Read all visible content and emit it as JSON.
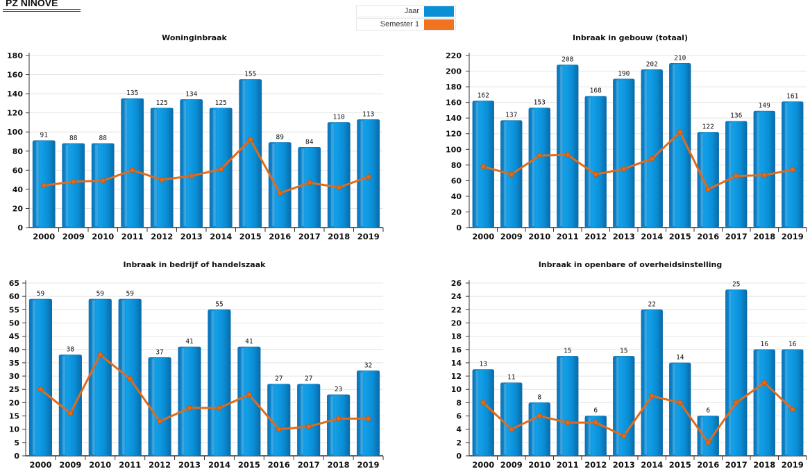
{
  "header": {
    "title": "PZ NINOVE"
  },
  "legend": [
    {
      "label": "Jaar",
      "color": "#0a8ed6"
    },
    {
      "label": "Semester 1",
      "color": "#f07320"
    }
  ],
  "colors": {
    "bar": "#0a8ed6",
    "line": "#e06b1c"
  },
  "chart_data": [
    {
      "type": "bar",
      "title": "Woninginbraak",
      "categories": [
        "2000",
        "2009",
        "2010",
        "2011",
        "2012",
        "2013",
        "2014",
        "2015",
        "2016",
        "2017",
        "2018",
        "2019"
      ],
      "ylim": [
        0,
        180
      ],
      "yticks": [
        0,
        20,
        40,
        60,
        80,
        100,
        120,
        140,
        160,
        180
      ],
      "series": [
        {
          "name": "Jaar",
          "type": "bar",
          "values": [
            91,
            88,
            88,
            135,
            125,
            134,
            125,
            155,
            89,
            84,
            110,
            113
          ]
        },
        {
          "name": "Semester 1",
          "type": "line",
          "values": [
            44,
            48,
            49,
            60,
            50,
            54,
            61,
            92,
            36,
            47,
            42,
            53
          ]
        }
      ]
    },
    {
      "type": "bar",
      "title": "Inbraak in gebouw (totaal)",
      "categories": [
        "2000",
        "2009",
        "2010",
        "2011",
        "2012",
        "2013",
        "2014",
        "2015",
        "2016",
        "2017",
        "2018",
        "2019"
      ],
      "ylim": [
        0,
        220
      ],
      "yticks": [
        0,
        20,
        40,
        60,
        80,
        100,
        120,
        140,
        160,
        180,
        200,
        220
      ],
      "series": [
        {
          "name": "Jaar",
          "type": "bar",
          "values": [
            162,
            137,
            153,
            208,
            168,
            190,
            202,
            210,
            122,
            136,
            149,
            161
          ]
        },
        {
          "name": "Semester 1",
          "type": "line",
          "values": [
            78,
            68,
            92,
            93,
            68,
            75,
            88,
            122,
            49,
            66,
            67,
            74
          ]
        }
      ]
    },
    {
      "type": "bar",
      "title": "Inbraak in bedrijf of handelszaak",
      "categories": [
        "2000",
        "2009",
        "2010",
        "2011",
        "2012",
        "2013",
        "2014",
        "2015",
        "2016",
        "2017",
        "2018",
        "2019"
      ],
      "ylim": [
        0,
        65
      ],
      "yticks": [
        0,
        5,
        10,
        15,
        20,
        25,
        30,
        35,
        40,
        45,
        50,
        55,
        60,
        65
      ],
      "series": [
        {
          "name": "Jaar",
          "type": "bar",
          "values": [
            59,
            38,
            59,
            59,
            37,
            41,
            55,
            41,
            27,
            27,
            23,
            32
          ]
        },
        {
          "name": "Semester 1",
          "type": "line",
          "values": [
            25,
            16,
            38,
            29,
            13,
            18,
            18,
            23,
            10,
            11,
            14,
            14
          ]
        }
      ]
    },
    {
      "type": "bar",
      "title": "Inbraak in openbare of overheidsinstelling",
      "categories": [
        "2000",
        "2009",
        "2010",
        "2011",
        "2012",
        "2013",
        "2014",
        "2015",
        "2016",
        "2017",
        "2018",
        "2019"
      ],
      "ylim": [
        0,
        26
      ],
      "yticks": [
        0,
        2,
        4,
        6,
        8,
        10,
        12,
        14,
        16,
        18,
        20,
        22,
        24,
        26
      ],
      "series": [
        {
          "name": "Jaar",
          "type": "bar",
          "values": [
            13,
            11,
            8,
            15,
            6,
            15,
            22,
            14,
            6,
            25,
            16,
            16
          ]
        },
        {
          "name": "Semester 1",
          "type": "line",
          "values": [
            8,
            4,
            6,
            5,
            5,
            3,
            9,
            8,
            2,
            8,
            11,
            7
          ]
        }
      ]
    }
  ]
}
